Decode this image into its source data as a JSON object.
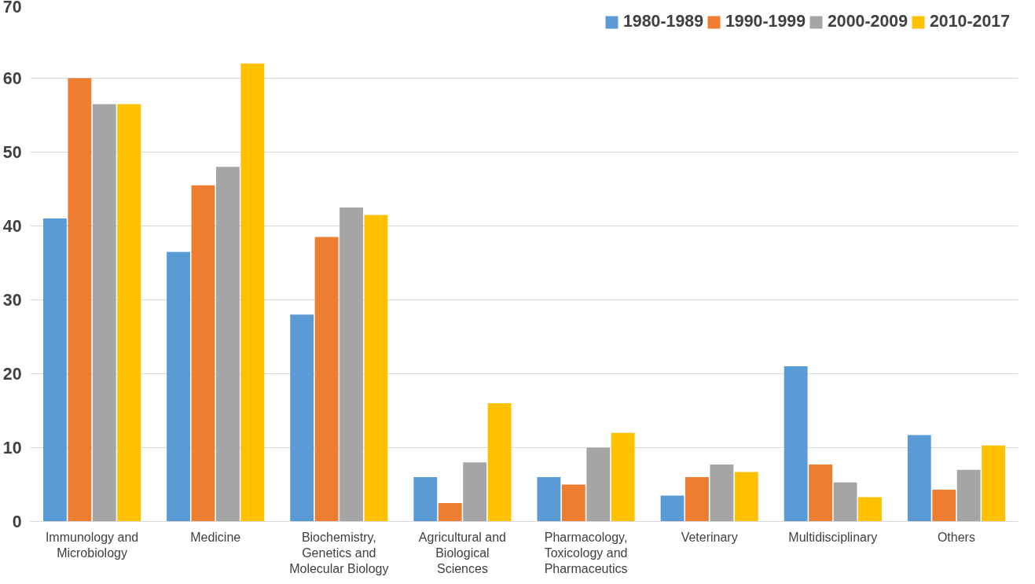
{
  "chart_data": {
    "type": "bar",
    "categories": [
      "Immunology and Microbiology",
      "Medicine",
      "Biochemistry, Genetics and Molecular Biology",
      "Agricultural and Biological Sciences",
      "Pharmacology, Toxicology and Pharmaceutics",
      "Veterinary",
      "Multidisciplinary",
      "Others"
    ],
    "series": [
      {
        "name": "1980-1989",
        "color": "#5b9bd5",
        "values": [
          41,
          36.5,
          28,
          6,
          6,
          3.5,
          21,
          11.7
        ]
      },
      {
        "name": "1990-1999",
        "color": "#ed7d31",
        "values": [
          60,
          45.5,
          38.5,
          2.5,
          5,
          6,
          7.7,
          4.3
        ]
      },
      {
        "name": "2000-2009",
        "color": "#a5a5a5",
        "values": [
          56.5,
          48,
          42.5,
          8,
          10,
          7.7,
          5.3,
          7
        ]
      },
      {
        "name": "2010-2017",
        "color": "#ffc000",
        "values": [
          56.5,
          62,
          41.5,
          16,
          12,
          6.7,
          3.3,
          10.3
        ]
      }
    ],
    "ylim": [
      0,
      70
    ],
    "yticks": [
      0,
      10,
      20,
      30,
      40,
      50,
      60,
      70
    ],
    "grid": "y",
    "legend": "top right"
  }
}
